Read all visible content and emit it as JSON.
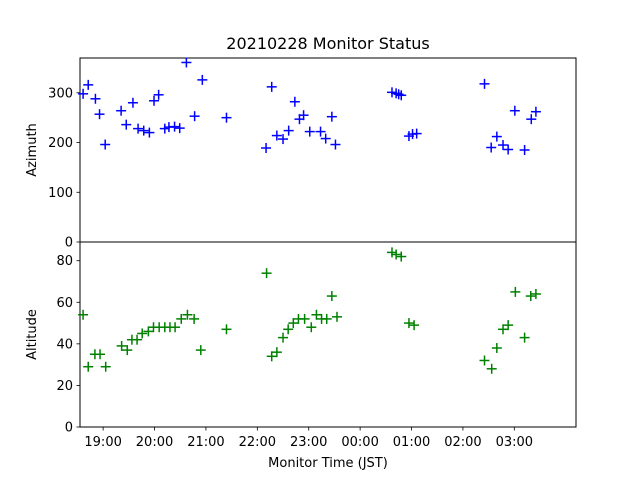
{
  "title": "20210228 Monitor Status",
  "chart_data": [
    {
      "type": "scatter",
      "panel": "top",
      "ylabel": "Azimuth",
      "xlabel": "",
      "x_unit": "hours since 18:00 JST",
      "ylim": [
        0,
        370
      ],
      "yticks": [
        0,
        100,
        200,
        300
      ],
      "xlim": [
        0.55,
        10.2
      ],
      "marker": "+",
      "color": "#0000ff",
      "grid": false,
      "points": [
        {
          "x": 0.61,
          "y": 298
        },
        {
          "x": 0.71,
          "y": 316
        },
        {
          "x": 0.85,
          "y": 288
        },
        {
          "x": 0.93,
          "y": 257
        },
        {
          "x": 1.04,
          "y": 196
        },
        {
          "x": 1.35,
          "y": 264
        },
        {
          "x": 1.45,
          "y": 236
        },
        {
          "x": 1.58,
          "y": 280
        },
        {
          "x": 1.68,
          "y": 228
        },
        {
          "x": 1.79,
          "y": 224
        },
        {
          "x": 1.9,
          "y": 220
        },
        {
          "x": 1.99,
          "y": 284
        },
        {
          "x": 2.08,
          "y": 296
        },
        {
          "x": 2.2,
          "y": 228
        },
        {
          "x": 2.28,
          "y": 231
        },
        {
          "x": 2.39,
          "y": 232
        },
        {
          "x": 2.49,
          "y": 229
        },
        {
          "x": 2.62,
          "y": 361
        },
        {
          "x": 2.78,
          "y": 253
        },
        {
          "x": 2.93,
          "y": 326
        },
        {
          "x": 3.4,
          "y": 250
        },
        {
          "x": 4.17,
          "y": 189
        },
        {
          "x": 4.28,
          "y": 312
        },
        {
          "x": 4.38,
          "y": 214
        },
        {
          "x": 4.5,
          "y": 207
        },
        {
          "x": 4.61,
          "y": 224
        },
        {
          "x": 4.73,
          "y": 282
        },
        {
          "x": 4.82,
          "y": 247
        },
        {
          "x": 4.9,
          "y": 255
        },
        {
          "x": 5.02,
          "y": 222
        },
        {
          "x": 5.23,
          "y": 222
        },
        {
          "x": 5.33,
          "y": 208
        },
        {
          "x": 5.45,
          "y": 252
        },
        {
          "x": 5.52,
          "y": 196
        },
        {
          "x": 6.62,
          "y": 301
        },
        {
          "x": 6.7,
          "y": 299
        },
        {
          "x": 6.75,
          "y": 297
        },
        {
          "x": 6.8,
          "y": 295
        },
        {
          "x": 6.95,
          "y": 213
        },
        {
          "x": 7.02,
          "y": 217
        },
        {
          "x": 7.1,
          "y": 218
        },
        {
          "x": 8.42,
          "y": 318
        },
        {
          "x": 8.55,
          "y": 190
        },
        {
          "x": 8.66,
          "y": 212
        },
        {
          "x": 8.78,
          "y": 195
        },
        {
          "x": 8.88,
          "y": 186
        },
        {
          "x": 9.01,
          "y": 264
        },
        {
          "x": 9.2,
          "y": 185
        },
        {
          "x": 9.33,
          "y": 247
        },
        {
          "x": 9.42,
          "y": 262
        }
      ]
    },
    {
      "type": "scatter",
      "panel": "bottom",
      "ylabel": "Altitude",
      "xlabel": "Monitor Time (JST)",
      "x_unit": "hours since 18:00 JST",
      "ylim": [
        0,
        89
      ],
      "yticks": [
        0,
        20,
        40,
        60,
        80
      ],
      "xlim": [
        0.55,
        10.2
      ],
      "xtick_positions": [
        1,
        2,
        3,
        4,
        5,
        6,
        7,
        8,
        9
      ],
      "xtick_labels": [
        "19:00",
        "20:00",
        "21:00",
        "22:00",
        "23:00",
        "00:00",
        "01:00",
        "02:00",
        "03:00"
      ],
      "marker": "+",
      "color": "#008000",
      "grid": false,
      "points": [
        {
          "x": 0.61,
          "y": 54
        },
        {
          "x": 0.71,
          "y": 29
        },
        {
          "x": 0.84,
          "y": 35
        },
        {
          "x": 0.94,
          "y": 35
        },
        {
          "x": 1.05,
          "y": 29
        },
        {
          "x": 1.36,
          "y": 39
        },
        {
          "x": 1.47,
          "y": 37
        },
        {
          "x": 1.56,
          "y": 42
        },
        {
          "x": 1.66,
          "y": 42
        },
        {
          "x": 1.76,
          "y": 45
        },
        {
          "x": 1.88,
          "y": 46
        },
        {
          "x": 1.98,
          "y": 48
        },
        {
          "x": 2.09,
          "y": 48
        },
        {
          "x": 2.2,
          "y": 48
        },
        {
          "x": 2.3,
          "y": 48
        },
        {
          "x": 2.4,
          "y": 48
        },
        {
          "x": 2.52,
          "y": 52
        },
        {
          "x": 2.64,
          "y": 54
        },
        {
          "x": 2.77,
          "y": 52
        },
        {
          "x": 2.9,
          "y": 37
        },
        {
          "x": 3.4,
          "y": 47
        },
        {
          "x": 4.18,
          "y": 74
        },
        {
          "x": 4.28,
          "y": 34
        },
        {
          "x": 4.38,
          "y": 36
        },
        {
          "x": 4.5,
          "y": 43
        },
        {
          "x": 4.6,
          "y": 47
        },
        {
          "x": 4.7,
          "y": 50
        },
        {
          "x": 4.8,
          "y": 52
        },
        {
          "x": 4.92,
          "y": 52
        },
        {
          "x": 5.05,
          "y": 48
        },
        {
          "x": 5.15,
          "y": 54
        },
        {
          "x": 5.25,
          "y": 52
        },
        {
          "x": 5.35,
          "y": 52
        },
        {
          "x": 5.45,
          "y": 63
        },
        {
          "x": 5.55,
          "y": 53
        },
        {
          "x": 6.62,
          "y": 84
        },
        {
          "x": 6.7,
          "y": 83
        },
        {
          "x": 6.8,
          "y": 82
        },
        {
          "x": 6.95,
          "y": 50
        },
        {
          "x": 7.05,
          "y": 49
        },
        {
          "x": 8.42,
          "y": 32
        },
        {
          "x": 8.56,
          "y": 28
        },
        {
          "x": 8.66,
          "y": 38
        },
        {
          "x": 8.78,
          "y": 47
        },
        {
          "x": 8.88,
          "y": 49
        },
        {
          "x": 9.02,
          "y": 65
        },
        {
          "x": 9.2,
          "y": 43
        },
        {
          "x": 9.32,
          "y": 63
        },
        {
          "x": 9.42,
          "y": 64
        }
      ]
    }
  ]
}
